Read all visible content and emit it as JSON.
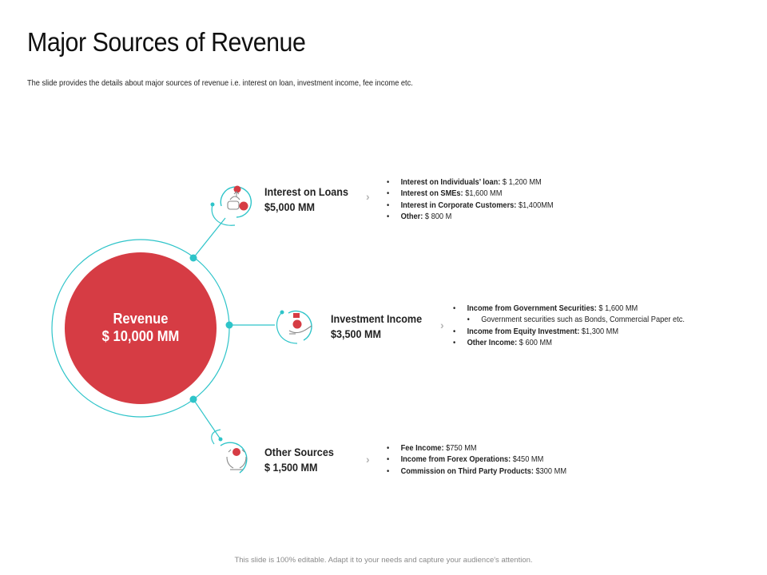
{
  "title": "Major Sources of Revenue",
  "subtitle": "The slide provides the details about major sources of revenue i.e. interest on loan, investment income, fee income etc.",
  "center": {
    "label": "Revenue",
    "value": "$ 10,000 MM"
  },
  "nodes": [
    {
      "title": "Interest on Loans",
      "value": "$5,000 MM",
      "icon": "money-bag-plant-icon",
      "details": [
        {
          "label": "Interest on Individuals’ loan:",
          "value": " $ 1,200 MM"
        },
        {
          "label": "Interest on SMEs:",
          "value": " $1,600 MM"
        },
        {
          "label": "Interest in Corporate Customers:",
          "value": " $1,400MM"
        },
        {
          "label": "Other:",
          "value": " $ 800 M"
        }
      ]
    },
    {
      "title": "Investment Income",
      "value": "$3,500 MM",
      "icon": "hand-money-bag-icon",
      "details": [
        {
          "label": "Income from Government Securities:",
          "value": " $ 1,600 MM"
        },
        {
          "label": "",
          "value": "Government securities such as Bonds, Commercial Paper etc.",
          "sub": true
        },
        {
          "label": "Income from Equity Investment:",
          "value": " $1,300 MM"
        },
        {
          "label": "Other Income:",
          "value": "  $ 600 MM"
        }
      ]
    },
    {
      "title": "Other Sources",
      "value": "$ 1,500 MM",
      "icon": "hands-coin-icon",
      "details": [
        {
          "label": "Fee Income:",
          "value": " $750 MM"
        },
        {
          "label": "Income from Forex Operations:",
          "value": " $450 MM"
        },
        {
          "label": "Commission on Third Party Products:",
          "value": " $300 MM"
        }
      ]
    }
  ],
  "footer": "This slide is 100% editable. Adapt it to your needs and capture your audience's attention.",
  "colors": {
    "accent_red": "#d63c44",
    "teal": "#2ec4c9",
    "icon_gray": "#8a8a8a"
  }
}
